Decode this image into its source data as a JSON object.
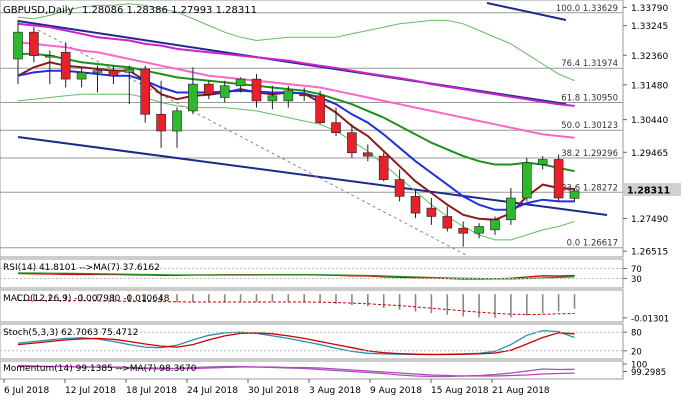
{
  "chart_data": [
    {
      "type": "candlestick",
      "title": "GBPUSD,Daily",
      "ohlc_header": "1.28086 1.28386 1.27993 1.28311",
      "last_price": "1.28311",
      "x_ticks": [
        "6 Jul 2018",
        "12 Jul 2018",
        "18 Jul 2018",
        "24 Jul 2018",
        "30 Jul 2018",
        "3 Aug 2018",
        "9 Aug 2018",
        "15 Aug 2018",
        "21 Aug 2018"
      ],
      "y_ticks": [
        1.3379,
        1.33245,
        1.3236,
        1.3148,
        1.3044,
        1.29465,
        1.2749,
        1.26515
      ],
      "y_tick_labels": [
        "1.33790",
        "1.33245",
        "1.32360",
        "1.31480",
        "1.30440",
        "1.29465",
        "1.27490",
        "1.26515"
      ],
      "ylim": [
        1.264,
        1.3395
      ],
      "fib_levels": [
        {
          "label": "100.0 1.33629",
          "value": 1.33629
        },
        {
          "label": "76.4 1.31974",
          "value": 1.31974
        },
        {
          "label": "61.8 1.30950",
          "value": 1.3095
        },
        {
          "label": "50.0 1.30123",
          "value": 1.30123
        },
        {
          "label": "38.2 1.29296",
          "value": 1.29296
        },
        {
          "label": "23.6 1.28272",
          "value": 1.28272
        },
        {
          "label": "0.0 1.26617",
          "value": 1.26617
        }
      ],
      "candles": [
        {
          "o": 1.3225,
          "h": 1.334,
          "l": 1.315,
          "c": 1.3305
        },
        {
          "o": 1.3305,
          "h": 1.332,
          "l": 1.3215,
          "c": 1.3235
        },
        {
          "o": 1.3235,
          "h": 1.325,
          "l": 1.315,
          "c": 1.3235
        },
        {
          "o": 1.3245,
          "h": 1.3275,
          "l": 1.314,
          "c": 1.3165
        },
        {
          "o": 1.3165,
          "h": 1.32,
          "l": 1.314,
          "c": 1.3185
        },
        {
          "o": 1.3185,
          "h": 1.3205,
          "l": 1.3125,
          "c": 1.319
        },
        {
          "o": 1.319,
          "h": 1.3205,
          "l": 1.315,
          "c": 1.3175
        },
        {
          "o": 1.3185,
          "h": 1.3205,
          "l": 1.309,
          "c": 1.3195
        },
        {
          "o": 1.3195,
          "h": 1.3205,
          "l": 1.3035,
          "c": 1.306
        },
        {
          "o": 1.306,
          "h": 1.316,
          "l": 1.296,
          "c": 1.301
        },
        {
          "o": 1.301,
          "h": 1.308,
          "l": 1.296,
          "c": 1.307
        },
        {
          "o": 1.307,
          "h": 1.32,
          "l": 1.306,
          "c": 1.315
        },
        {
          "o": 1.315,
          "h": 1.316,
          "l": 1.3105,
          "c": 1.312
        },
        {
          "o": 1.311,
          "h": 1.316,
          "l": 1.3095,
          "c": 1.3145
        },
        {
          "o": 1.3145,
          "h": 1.317,
          "l": 1.3125,
          "c": 1.3165
        },
        {
          "o": 1.3165,
          "h": 1.318,
          "l": 1.308,
          "c": 1.31
        },
        {
          "o": 1.31,
          "h": 1.3145,
          "l": 1.3075,
          "c": 1.3115
        },
        {
          "o": 1.31,
          "h": 1.3145,
          "l": 1.308,
          "c": 1.313
        },
        {
          "o": 1.312,
          "h": 1.314,
          "l": 1.31,
          "c": 1.3115
        },
        {
          "o": 1.3115,
          "h": 1.313,
          "l": 1.303,
          "c": 1.3035
        },
        {
          "o": 1.3035,
          "h": 1.308,
          "l": 1.2995,
          "c": 1.3005
        },
        {
          "o": 1.3005,
          "h": 1.303,
          "l": 1.293,
          "c": 1.2945
        },
        {
          "o": 1.2945,
          "h": 1.297,
          "l": 1.292,
          "c": 1.2935
        },
        {
          "o": 1.2935,
          "h": 1.2945,
          "l": 1.286,
          "c": 1.2865
        },
        {
          "o": 1.2865,
          "h": 1.2895,
          "l": 1.28,
          "c": 1.2815
        },
        {
          "o": 1.2815,
          "h": 1.2835,
          "l": 1.275,
          "c": 1.2765
        },
        {
          "o": 1.278,
          "h": 1.281,
          "l": 1.273,
          "c": 1.2755
        },
        {
          "o": 1.2755,
          "h": 1.2785,
          "l": 1.271,
          "c": 1.272
        },
        {
          "o": 1.272,
          "h": 1.274,
          "l": 1.2665,
          "c": 1.2705
        },
        {
          "o": 1.2705,
          "h": 1.2735,
          "l": 1.269,
          "c": 1.2725
        },
        {
          "o": 1.2715,
          "h": 1.2755,
          "l": 1.27,
          "c": 1.2745
        },
        {
          "o": 1.2745,
          "h": 1.284,
          "l": 1.273,
          "c": 1.281
        },
        {
          "o": 1.281,
          "h": 1.293,
          "l": 1.28,
          "c": 1.2915
        },
        {
          "o": 1.291,
          "h": 1.2935,
          "l": 1.2895,
          "c": 1.2925
        },
        {
          "o": 1.2925,
          "h": 1.294,
          "l": 1.28,
          "c": 1.281
        },
        {
          "o": 1.2809,
          "h": 1.2839,
          "l": 1.2799,
          "c": 1.2831
        }
      ],
      "overlay_series": [
        {
          "color": "#8b1a1a",
          "values": [
            1.3175,
            1.32,
            1.3215,
            1.3205,
            1.32,
            1.3195,
            1.319,
            1.319,
            1.316,
            1.312,
            1.3105,
            1.3115,
            1.3118,
            1.3125,
            1.3135,
            1.3125,
            1.312,
            1.3125,
            1.3122,
            1.3095,
            1.3065,
            1.3025,
            1.2995,
            1.295,
            1.2905,
            1.286,
            1.2825,
            1.279,
            1.276,
            1.2748,
            1.2745,
            1.2765,
            1.2815,
            1.285,
            1.284,
            1.2837
          ]
        },
        {
          "color": "#2030e0",
          "values": [
            1.3175,
            1.3185,
            1.319,
            1.319,
            1.3185,
            1.318,
            1.3175,
            1.3175,
            1.316,
            1.314,
            1.3125,
            1.3125,
            1.3125,
            1.3128,
            1.313,
            1.3128,
            1.3125,
            1.3125,
            1.3122,
            1.311,
            1.309,
            1.306,
            1.3035,
            1.3,
            1.296,
            1.292,
            1.2885,
            1.285,
            1.2815,
            1.279,
            1.2775,
            1.2775,
            1.2795,
            1.2805,
            1.28,
            1.28
          ]
        },
        {
          "color": "#1f8f1f",
          "values": [
            1.324,
            1.324,
            1.3235,
            1.3225,
            1.3215,
            1.321,
            1.3205,
            1.32,
            1.319,
            1.318,
            1.317,
            1.3165,
            1.316,
            1.3155,
            1.315,
            1.3145,
            1.314,
            1.3135,
            1.313,
            1.312,
            1.3105,
            1.309,
            1.307,
            1.305,
            1.3025,
            1.3,
            1.2975,
            1.2955,
            1.2935,
            1.292,
            1.291,
            1.291,
            1.2915,
            1.291,
            1.29,
            1.289
          ]
        },
        {
          "color": "#ff66cc",
          "values": [
            1.3275,
            1.327,
            1.3265,
            1.326,
            1.325,
            1.3245,
            1.3235,
            1.3225,
            1.3215,
            1.3205,
            1.3195,
            1.3185,
            1.3175,
            1.317,
            1.3165,
            1.316,
            1.3155,
            1.315,
            1.3145,
            1.314,
            1.313,
            1.312,
            1.311,
            1.31,
            1.309,
            1.308,
            1.307,
            1.306,
            1.305,
            1.304,
            1.303,
            1.302,
            1.301,
            1.3,
            1.2995,
            1.299
          ]
        },
        {
          "color": "#cc22cc",
          "values": [
            1.333,
            1.3325,
            1.332,
            1.331,
            1.33,
            1.329,
            1.3285,
            1.328,
            1.327,
            1.3265,
            1.3255,
            1.325,
            1.3245,
            1.324,
            1.3235,
            1.323,
            1.3225,
            1.322,
            1.3212,
            1.3205,
            1.3198,
            1.319,
            1.3182,
            1.3175,
            1.3168,
            1.316,
            1.315,
            1.3142,
            1.3135,
            1.3127,
            1.312,
            1.3112,
            1.3105,
            1.3097,
            1.309,
            1.3085
          ]
        },
        {
          "color": "#66bb66",
          "values": [
            1.335,
            1.3345,
            1.3355,
            1.337,
            1.338,
            1.3385,
            1.3385,
            1.339,
            1.3385,
            1.3375,
            1.3365,
            1.3345,
            1.3325,
            1.3305,
            1.329,
            1.328,
            1.3285,
            1.329,
            1.329,
            1.329,
            1.329,
            1.33,
            1.331,
            1.332,
            1.333,
            1.3335,
            1.334,
            1.334,
            1.333,
            1.331,
            1.329,
            1.327,
            1.324,
            1.321,
            1.318,
            1.316
          ]
        },
        {
          "color": "#66bb66",
          "values": [
            1.31,
            1.3105,
            1.311,
            1.3115,
            1.312,
            1.312,
            1.312,
            1.312,
            1.311,
            1.3095,
            1.3085,
            1.308,
            1.308,
            1.308,
            1.3075,
            1.307,
            1.306,
            1.305,
            1.304,
            1.303,
            1.301,
            1.298,
            1.295,
            1.291,
            1.287,
            1.283,
            1.279,
            1.2755,
            1.2725,
            1.27,
            1.2685,
            1.2685,
            1.27,
            1.2715,
            1.2725,
            1.274
          ]
        }
      ]
    },
    {
      "type": "line",
      "title": "RSI(14) 41.8101 -->MA(7) 37.6162",
      "y_tick_labels": [
        "70",
        "30"
      ],
      "ylim": [
        0,
        100
      ],
      "series": [
        {
          "name": "RSI",
          "color": "#cc0000",
          "values": [
            50,
            49,
            48,
            47,
            46,
            46,
            46,
            45,
            44,
            43,
            43,
            44,
            44,
            45,
            45,
            45,
            45,
            45,
            45,
            44,
            43,
            41,
            40,
            37,
            35,
            33,
            32,
            30,
            28,
            28,
            29,
            31,
            36,
            41,
            40,
            42
          ]
        },
        {
          "name": "MA",
          "color": "#1f8f1f",
          "values": [
            52,
            52,
            51,
            51,
            50,
            49,
            48,
            47,
            46,
            45,
            44,
            44,
            44,
            44,
            44,
            44,
            45,
            45,
            45,
            45,
            44,
            43,
            42,
            40,
            38,
            36,
            34,
            32,
            31,
            30,
            29,
            29,
            30,
            32,
            35,
            37
          ]
        }
      ]
    },
    {
      "type": "bar",
      "title": "MACD(12,26,9) -0.007980 -0.010648",
      "y_tick_labels": [
        "-0.01301"
      ],
      "ylim": [
        -0.0142,
        0.0012
      ],
      "values": [
        -0.003,
        -0.0033,
        -0.0035,
        -0.0037,
        -0.0038,
        -0.0039,
        -0.004,
        -0.0041,
        -0.0042,
        -0.0044,
        -0.0045,
        -0.0045,
        -0.0044,
        -0.0043,
        -0.0042,
        -0.0042,
        -0.0042,
        -0.0043,
        -0.0044,
        -0.0048,
        -0.0053,
        -0.006,
        -0.0067,
        -0.0076,
        -0.0086,
        -0.0096,
        -0.0105,
        -0.0114,
        -0.0122,
        -0.0128,
        -0.013,
        -0.0127,
        -0.0118,
        -0.0105,
        -0.0095,
        -0.008
      ],
      "series": [
        {
          "name": "Signal",
          "color": "#cc0000",
          "values": [
            -0.0035,
            -0.0035,
            -0.0035,
            -0.0036,
            -0.0036,
            -0.0037,
            -0.0038,
            -0.0039,
            -0.004,
            -0.0041,
            -0.0042,
            -0.0043,
            -0.0043,
            -0.0043,
            -0.0043,
            -0.0043,
            -0.0043,
            -0.0043,
            -0.0043,
            -0.0044,
            -0.0046,
            -0.0049,
            -0.0053,
            -0.0058,
            -0.0063,
            -0.007,
            -0.0077,
            -0.0084,
            -0.0092,
            -0.0099,
            -0.0105,
            -0.011,
            -0.0112,
            -0.0111,
            -0.0108,
            -0.0106
          ]
        }
      ]
    },
    {
      "type": "line",
      "title": "Stoch(5,3,3) 62.7063 75.4712",
      "y_tick_labels": [
        "80",
        "20"
      ],
      "ylim": [
        0,
        100
      ],
      "series": [
        {
          "name": "%K",
          "color": "#2a8fa8",
          "values": [
            45,
            50,
            55,
            60,
            62,
            58,
            50,
            40,
            32,
            30,
            38,
            55,
            70,
            78,
            80,
            76,
            68,
            60,
            50,
            40,
            28,
            18,
            12,
            10,
            9,
            8,
            8,
            9,
            10,
            12,
            18,
            40,
            70,
            85,
            82,
            63
          ]
        },
        {
          "name": "%D",
          "color": "#cc0000",
          "values": [
            40,
            45,
            50,
            55,
            58,
            60,
            57,
            50,
            42,
            35,
            32,
            40,
            55,
            68,
            76,
            78,
            75,
            68,
            60,
            50,
            40,
            30,
            20,
            14,
            11,
            9,
            8,
            8,
            9,
            10,
            13,
            22,
            42,
            63,
            78,
            75
          ]
        }
      ]
    },
    {
      "type": "line",
      "title": "Momentum(14) 99.1385 -->MA(7) 98.3670",
      "y_tick_labels": [
        "100",
        "99.2985"
      ],
      "ylim": [
        97.4,
        100.6
      ],
      "series": [
        {
          "name": "Momentum",
          "color": "#9a5ab4",
          "values": [
            99.9,
            99.8,
            99.7,
            99.7,
            99.6,
            99.6,
            99.5,
            99.4,
            99.3,
            99.2,
            99.3,
            99.5,
            99.6,
            99.7,
            99.7,
            99.6,
            99.5,
            99.4,
            99.3,
            99.1,
            98.9,
            98.7,
            98.5,
            98.3,
            98.0,
            97.8,
            97.7,
            97.7,
            97.8,
            97.9,
            98.1,
            98.4,
            98.8,
            99.2,
            99.1,
            99.14
          ]
        },
        {
          "name": "MA",
          "color": "#c040c0",
          "values": [
            99.7,
            99.7,
            99.7,
            99.7,
            99.6,
            99.6,
            99.6,
            99.5,
            99.4,
            99.4,
            99.3,
            99.3,
            99.4,
            99.5,
            99.6,
            99.6,
            99.6,
            99.5,
            99.5,
            99.4,
            99.2,
            99.0,
            98.8,
            98.6,
            98.4,
            98.2,
            98.0,
            97.9,
            97.8,
            97.8,
            97.8,
            97.9,
            98.0,
            98.2,
            98.3,
            98.37
          ]
        }
      ]
    }
  ],
  "colors": {
    "bull": "#2eb82e",
    "bear": "#e8202a",
    "last_price_bg": "#d0d0d0",
    "trendline": "#1c2a8c",
    "fib_line": "#999999",
    "grid": "#d9d9d9"
  }
}
